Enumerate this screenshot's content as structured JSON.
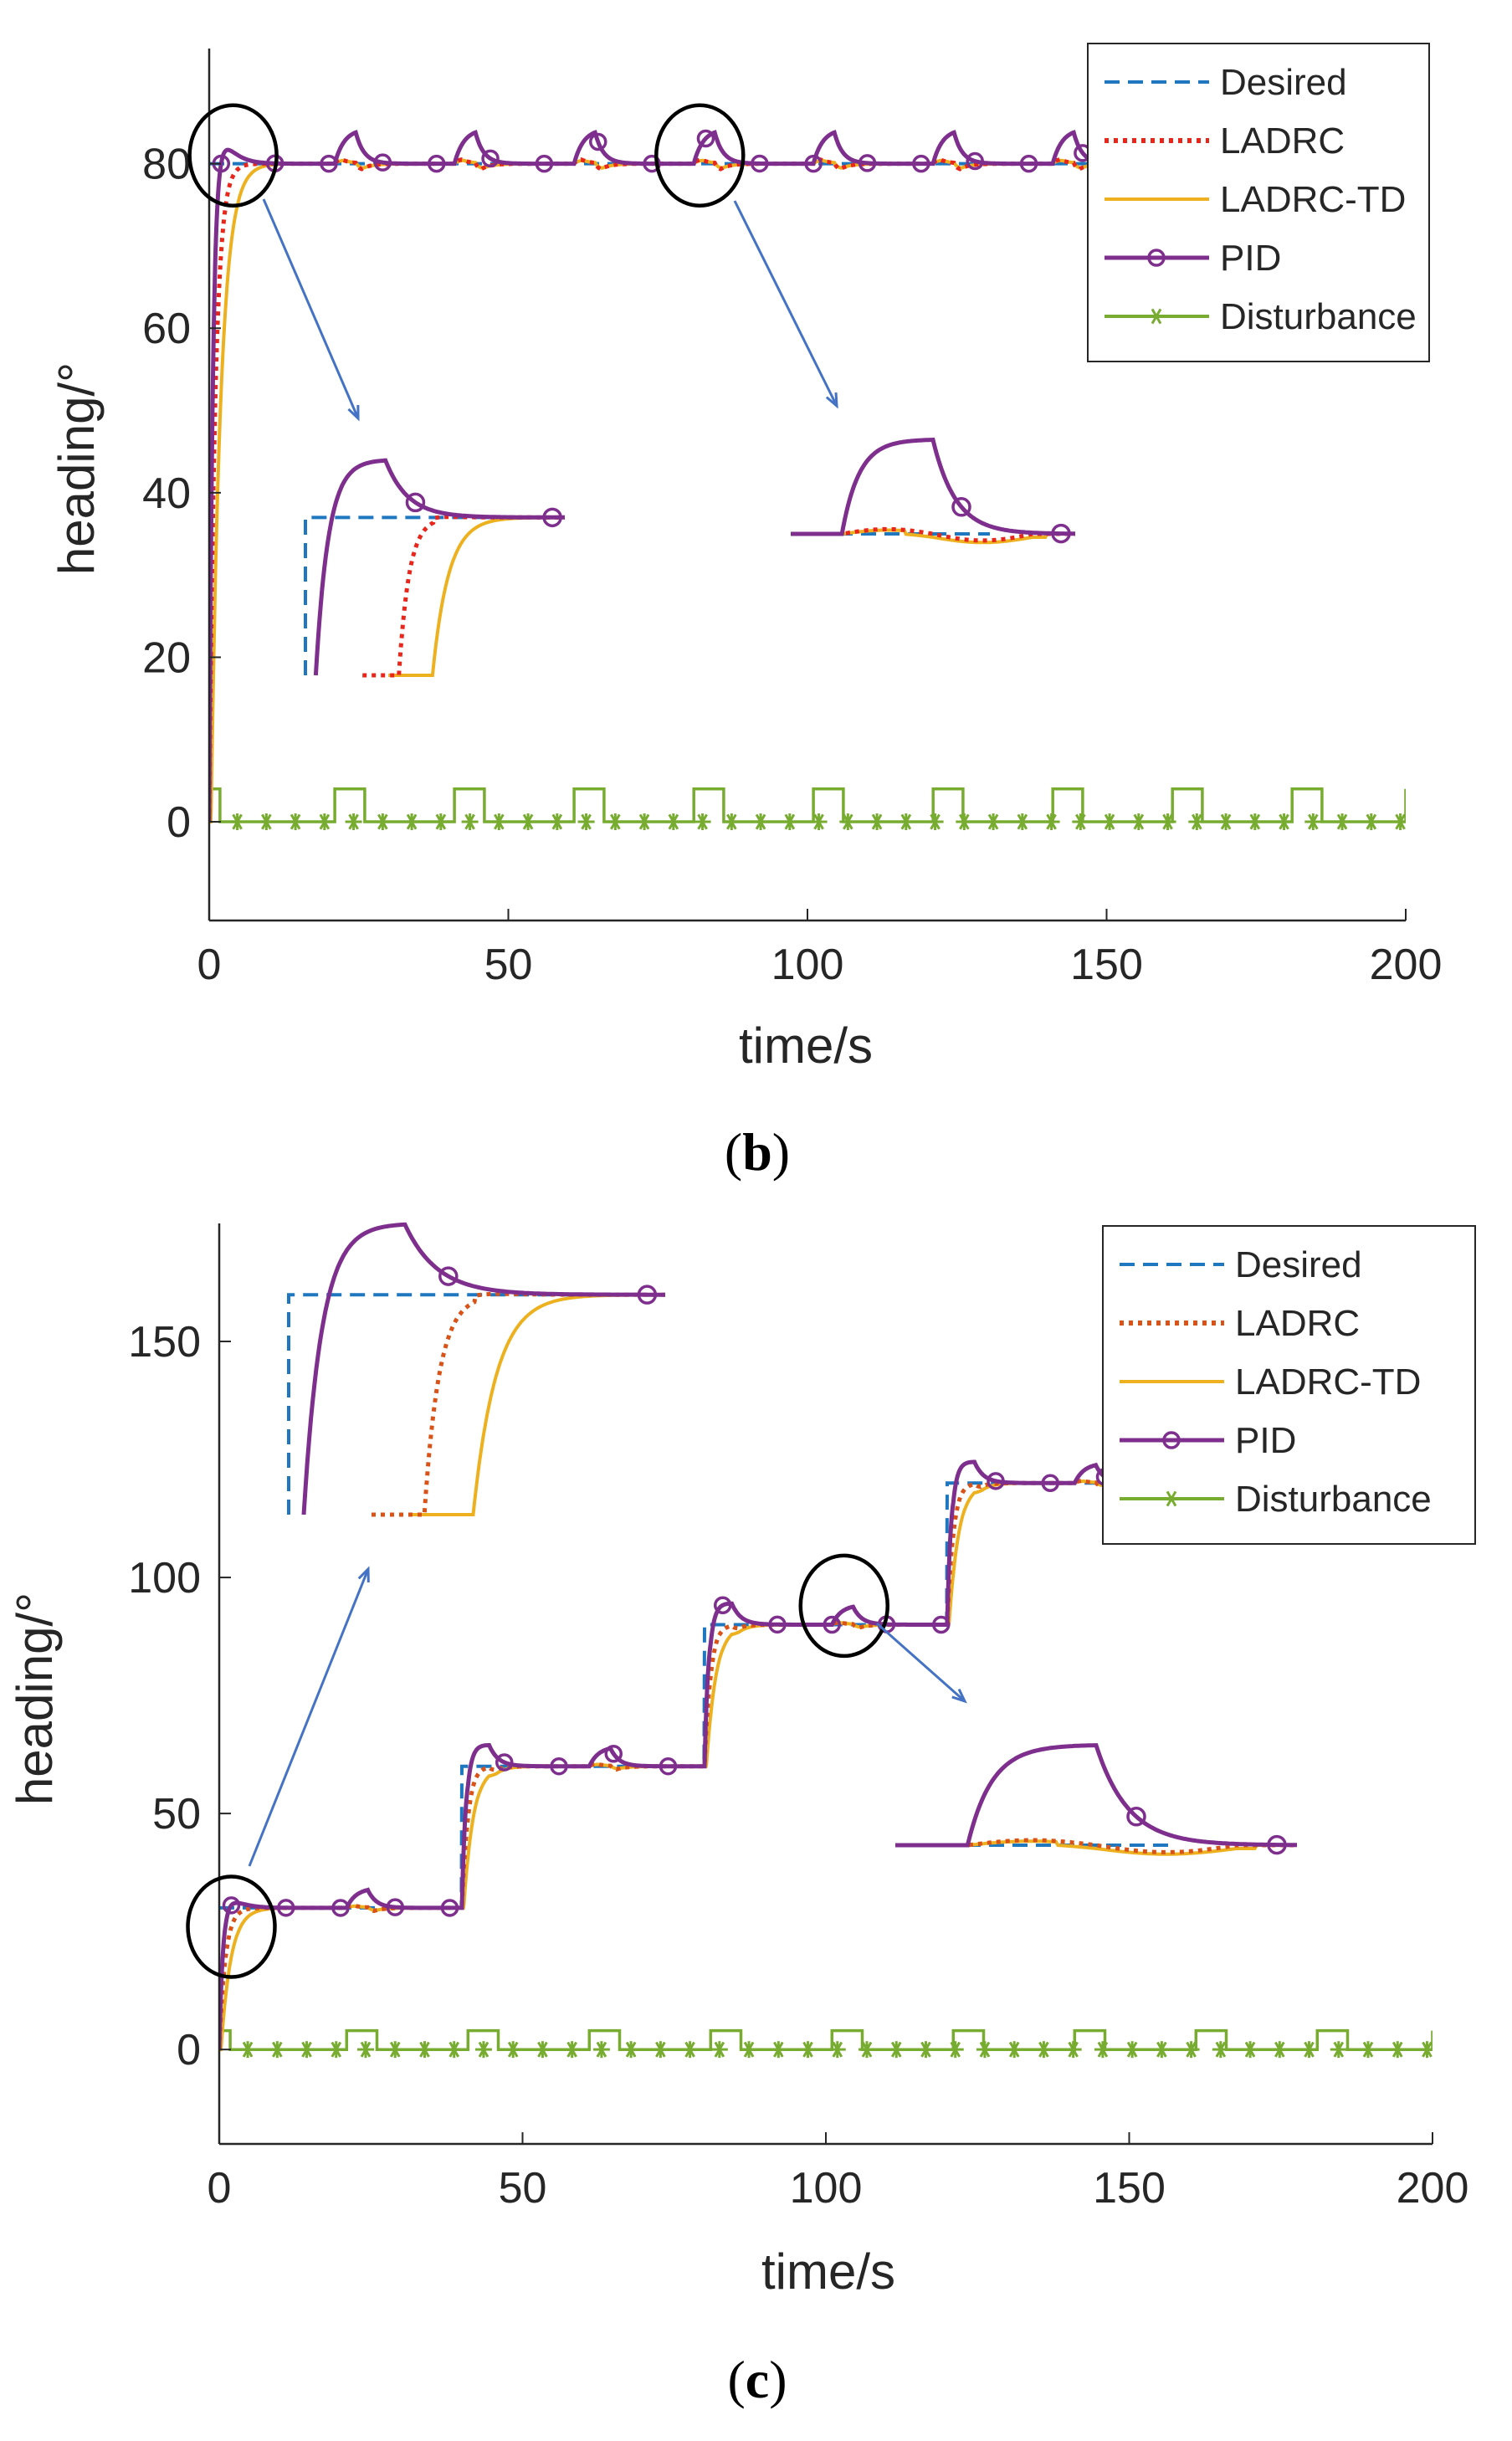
{
  "chart_data": [
    {
      "panel": "b",
      "type": "line",
      "caption_open": "(",
      "caption_letter": "b",
      "caption_close": ")",
      "xlabel": "time/s",
      "ylabel": "heading/°",
      "xlim": [
        0,
        200
      ],
      "ylim": [
        -12,
        94
      ],
      "xticks": [
        0,
        50,
        100,
        150,
        200
      ],
      "yticks": [
        0,
        20,
        40,
        60,
        80
      ],
      "legend": [
        "Desired",
        "LADRC",
        "LADRC-TD",
        "PID",
        "Disturbance"
      ],
      "setpoints": [
        [
          0,
          80
        ]
      ],
      "disturbance": {
        "period": 20,
        "first_pulse": [
          0,
          1.8
        ],
        "pulse_start_offset": 1,
        "pulse_width": 5,
        "amplitude": 4,
        "x_end": 200
      },
      "step_end": 80,
      "pid_overshoot_peak": 82.5,
      "pid_bump_peak": 84,
      "zoom_regions": [
        {
          "name": "initial-step",
          "center": [
            4,
            81
          ]
        },
        {
          "name": "disturbance-response",
          "center": [
            82,
            81
          ]
        }
      ]
    },
    {
      "panel": "c",
      "type": "line",
      "caption_open": "(",
      "caption_letter": "c",
      "caption_close": ")",
      "xlabel": "time/s",
      "ylabel": "heading/°",
      "xlim": [
        0,
        200
      ],
      "ylim": [
        -20,
        175
      ],
      "xticks": [
        0,
        50,
        100,
        150,
        200
      ],
      "yticks": [
        0,
        50,
        100,
        150
      ],
      "legend": [
        "Desired",
        "LADRC",
        "LADRC-TD",
        "PID",
        "Disturbance"
      ],
      "setpoints": [
        [
          0,
          30
        ],
        [
          40,
          60
        ],
        [
          80,
          90
        ],
        [
          120,
          120
        ]
      ],
      "disturbance": {
        "period": 20,
        "first_pulse": [
          0,
          1.8
        ],
        "pulse_start_offset": 1,
        "pulse_width": 5,
        "amplitude": 4,
        "x_end": 200
      },
      "zoom_regions": [
        {
          "name": "initial-step",
          "center": [
            2,
            26
          ]
        },
        {
          "name": "disturbance-response",
          "center": [
            103,
            94
          ]
        }
      ]
    }
  ],
  "colors": {
    "desired": "#1f77c0",
    "ladrc": "#e8261c",
    "ladrc_c": "#d95319",
    "ladrc_td": "#edb120",
    "pid": "#7e2f8e",
    "disturbance": "#77ac30",
    "arrow": "#4472c4"
  }
}
